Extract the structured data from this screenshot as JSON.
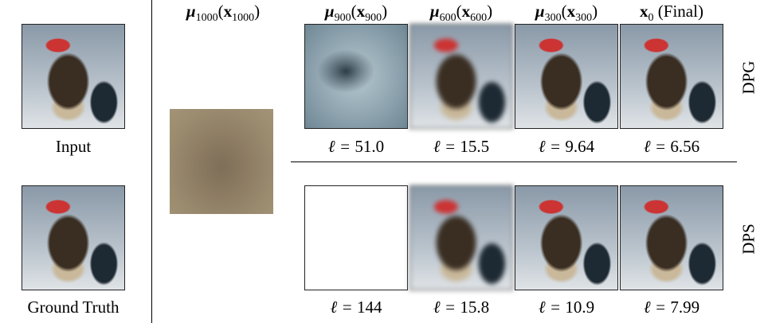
{
  "columns": [
    {
      "base": "μ",
      "sub": "1000",
      "arg": "x",
      "arg_sub": "1000"
    },
    {
      "base": "μ",
      "sub": "900",
      "arg": "x",
      "arg_sub": "900"
    },
    {
      "base": "μ",
      "sub": "600",
      "arg": "x",
      "arg_sub": "600"
    },
    {
      "base": "μ",
      "sub": "300",
      "arg": "x",
      "arg_sub": "300"
    },
    {
      "base": "x",
      "sub": "0",
      "suffix": "(Final)"
    }
  ],
  "left_labels": [
    "Input",
    "Ground Truth"
  ],
  "loss_prefix": "ℓ =",
  "rows": [
    {
      "label": "DPG",
      "losses": [
        "51.0",
        "15.5",
        "9.64",
        "6.56"
      ]
    },
    {
      "label": "DPS",
      "losses": [
        "144",
        "15.8",
        "10.9",
        "7.99"
      ]
    }
  ]
}
